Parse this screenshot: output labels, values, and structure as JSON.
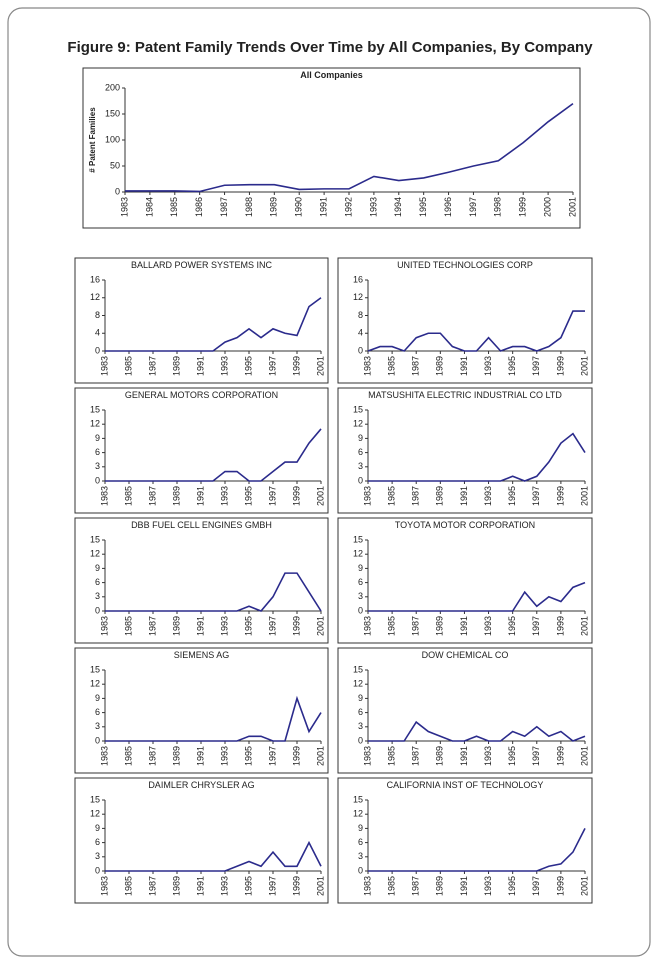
{
  "title": "Figure 9: Patent Family Trends Over Time by All Companies, By Company",
  "chart_data": [
    {
      "type": "line",
      "title": "All Companies",
      "ylabel": "# Patent Families",
      "color": "#2b2b8c",
      "x": [
        1983,
        1984,
        1985,
        1986,
        1987,
        1988,
        1989,
        1990,
        1991,
        1992,
        1993,
        1994,
        1995,
        1996,
        1997,
        1998,
        1999,
        2000,
        2001
      ],
      "values": [
        2,
        2,
        2,
        1,
        13,
        14,
        14,
        5,
        6,
        6,
        30,
        22,
        27,
        38,
        50,
        60,
        95,
        135,
        170
      ],
      "xlim": [
        1983,
        2001
      ],
      "xticks": [
        1983,
        1984,
        1985,
        1986,
        1987,
        1988,
        1989,
        1990,
        1991,
        1992,
        1993,
        1994,
        1995,
        1996,
        1997,
        1998,
        1999,
        2000,
        2001
      ],
      "ylim": [
        0,
        200
      ],
      "yticks": [
        0,
        50,
        100,
        150,
        200
      ]
    },
    {
      "type": "line",
      "title": "BALLARD POWER SYSTEMS INC",
      "color": "#2b2b8c",
      "x": [
        1983,
        1984,
        1985,
        1986,
        1987,
        1988,
        1989,
        1990,
        1991,
        1992,
        1993,
        1994,
        1995,
        1996,
        1997,
        1998,
        1999,
        2000,
        2001
      ],
      "values": [
        0,
        0,
        0,
        0,
        0,
        0,
        0,
        0,
        0,
        0,
        2,
        3,
        5,
        3,
        5,
        4,
        3.5,
        10,
        12
      ],
      "xlim": [
        1983,
        2001
      ],
      "xticks": [
        1983,
        1985,
        1987,
        1989,
        1991,
        1993,
        1995,
        1997,
        1999,
        2001
      ],
      "ylim": [
        0,
        16
      ],
      "yticks": [
        0,
        4,
        8,
        12,
        16
      ]
    },
    {
      "type": "line",
      "title": "UNITED TECHNOLOGIES CORP",
      "color": "#2b2b8c",
      "x": [
        1983,
        1984,
        1985,
        1986,
        1987,
        1988,
        1989,
        1990,
        1991,
        1992,
        1993,
        1994,
        1995,
        1996,
        1997,
        1998,
        1999,
        2000,
        2001
      ],
      "values": [
        0,
        1,
        1,
        0,
        3,
        4,
        4,
        1,
        0,
        0,
        3,
        0,
        1,
        1,
        0,
        1,
        3,
        9,
        9
      ],
      "xlim": [
        1983,
        2001
      ],
      "xticks": [
        1983,
        1985,
        1987,
        1989,
        1991,
        1993,
        1995,
        1997,
        1999,
        2001
      ],
      "ylim": [
        0,
        16
      ],
      "yticks": [
        0,
        4,
        8,
        12,
        16
      ]
    },
    {
      "type": "line",
      "title": "GENERAL MOTORS CORPORATION",
      "color": "#2b2b8c",
      "x": [
        1983,
        1984,
        1985,
        1986,
        1987,
        1988,
        1989,
        1990,
        1991,
        1992,
        1993,
        1994,
        1995,
        1996,
        1997,
        1998,
        1999,
        2000,
        2001
      ],
      "values": [
        0,
        0,
        0,
        0,
        0,
        0,
        0,
        0,
        0,
        0,
        2,
        2,
        0,
        0,
        2,
        4,
        4,
        8,
        11
      ],
      "xlim": [
        1983,
        2001
      ],
      "xticks": [
        1983,
        1985,
        1987,
        1989,
        1991,
        1993,
        1995,
        1997,
        1999,
        2001
      ],
      "ylim": [
        0,
        15
      ],
      "yticks": [
        0,
        3,
        6,
        9,
        12,
        15
      ]
    },
    {
      "type": "line",
      "title": "MATSUSHITA ELECTRIC INDUSTRIAL CO LTD",
      "color": "#2b2b8c",
      "x": [
        1983,
        1984,
        1985,
        1986,
        1987,
        1988,
        1989,
        1990,
        1991,
        1992,
        1993,
        1994,
        1995,
        1996,
        1997,
        1998,
        1999,
        2000,
        2001
      ],
      "values": [
        0,
        0,
        0,
        0,
        0,
        0,
        0,
        0,
        0,
        0,
        0,
        0,
        1,
        0,
        1,
        4,
        8,
        10,
        6
      ],
      "xlim": [
        1983,
        2001
      ],
      "xticks": [
        1983,
        1985,
        1987,
        1989,
        1991,
        1993,
        1995,
        1997,
        1999,
        2001
      ],
      "ylim": [
        0,
        15
      ],
      "yticks": [
        0,
        3,
        6,
        9,
        12,
        15
      ]
    },
    {
      "type": "line",
      "title": "DBB FUEL CELL ENGINES GMBH",
      "color": "#2b2b8c",
      "x": [
        1983,
        1984,
        1985,
        1986,
        1987,
        1988,
        1989,
        1990,
        1991,
        1992,
        1993,
        1994,
        1995,
        1996,
        1997,
        1998,
        1999,
        2000,
        2001
      ],
      "values": [
        0,
        0,
        0,
        0,
        0,
        0,
        0,
        0,
        0,
        0,
        0,
        0,
        1,
        0,
        3,
        8,
        8,
        4,
        0
      ],
      "xlim": [
        1983,
        2001
      ],
      "xticks": [
        1983,
        1985,
        1987,
        1989,
        1991,
        1993,
        1995,
        1997,
        1999,
        2001
      ],
      "ylim": [
        0,
        15
      ],
      "yticks": [
        0,
        3,
        6,
        9,
        12,
        15
      ]
    },
    {
      "type": "line",
      "title": "TOYOTA MOTOR CORPORATION",
      "color": "#2b2b8c",
      "x": [
        1983,
        1984,
        1985,
        1986,
        1987,
        1988,
        1989,
        1990,
        1991,
        1992,
        1993,
        1994,
        1995,
        1996,
        1997,
        1998,
        1999,
        2000,
        2001
      ],
      "values": [
        0,
        0,
        0,
        0,
        0,
        0,
        0,
        0,
        0,
        0,
        0,
        0,
        0,
        4,
        1,
        3,
        2,
        5,
        6
      ],
      "xlim": [
        1983,
        2001
      ],
      "xticks": [
        1983,
        1985,
        1987,
        1989,
        1991,
        1993,
        1995,
        1997,
        1999,
        2001
      ],
      "ylim": [
        0,
        15
      ],
      "yticks": [
        0,
        3,
        6,
        9,
        12,
        15
      ]
    },
    {
      "type": "line",
      "title": "SIEMENS AG",
      "color": "#2b2b8c",
      "x": [
        1983,
        1984,
        1985,
        1986,
        1987,
        1988,
        1989,
        1990,
        1991,
        1992,
        1993,
        1994,
        1995,
        1996,
        1997,
        1998,
        1999,
        2000,
        2001
      ],
      "values": [
        0,
        0,
        0,
        0,
        0,
        0,
        0,
        0,
        0,
        0,
        0,
        0,
        1,
        1,
        0,
        0,
        9,
        2,
        6
      ],
      "xlim": [
        1983,
        2001
      ],
      "xticks": [
        1983,
        1985,
        1987,
        1989,
        1991,
        1993,
        1995,
        1997,
        1999,
        2001
      ],
      "ylim": [
        0,
        15
      ],
      "yticks": [
        0,
        3,
        6,
        9,
        12,
        15
      ]
    },
    {
      "type": "line",
      "title": "DOW CHEMICAL CO",
      "color": "#2b2b8c",
      "x": [
        1983,
        1984,
        1985,
        1986,
        1987,
        1988,
        1989,
        1990,
        1991,
        1992,
        1993,
        1994,
        1995,
        1996,
        1997,
        1998,
        1999,
        2000,
        2001
      ],
      "values": [
        0,
        0,
        0,
        0,
        4,
        2,
        1,
        0,
        0,
        1,
        0,
        0,
        2,
        1,
        3,
        1,
        2,
        0,
        1
      ],
      "xlim": [
        1983,
        2001
      ],
      "xticks": [
        1983,
        1985,
        1987,
        1989,
        1991,
        1993,
        1995,
        1997,
        1999,
        2001
      ],
      "ylim": [
        0,
        15
      ],
      "yticks": [
        0,
        3,
        6,
        9,
        12,
        15
      ]
    },
    {
      "type": "line",
      "title": "DAIMLER CHRYSLER AG",
      "color": "#2b2b8c",
      "x": [
        1983,
        1984,
        1985,
        1986,
        1987,
        1988,
        1989,
        1990,
        1991,
        1992,
        1993,
        1994,
        1995,
        1996,
        1997,
        1998,
        1999,
        2000,
        2001
      ],
      "values": [
        0,
        0,
        0,
        0,
        0,
        0,
        0,
        0,
        0,
        0,
        0,
        1,
        2,
        1,
        4,
        1,
        1,
        6,
        1
      ],
      "xlim": [
        1983,
        2001
      ],
      "xticks": [
        1983,
        1985,
        1987,
        1989,
        1991,
        1993,
        1995,
        1997,
        1999,
        2001
      ],
      "ylim": [
        0,
        15
      ],
      "yticks": [
        0,
        3,
        6,
        9,
        12,
        15
      ]
    },
    {
      "type": "line",
      "title": "CALIFORNIA INST OF TECHNOLOGY",
      "color": "#2b2b8c",
      "x": [
        1983,
        1984,
        1985,
        1986,
        1987,
        1988,
        1989,
        1990,
        1991,
        1992,
        1993,
        1994,
        1995,
        1996,
        1997,
        1998,
        1999,
        2000,
        2001
      ],
      "values": [
        0,
        0,
        0,
        0,
        0,
        0,
        0,
        0,
        0,
        0,
        0,
        0,
        0,
        0,
        0,
        1,
        1.5,
        4,
        9
      ],
      "xlim": [
        1983,
        2001
      ],
      "xticks": [
        1983,
        1985,
        1987,
        1989,
        1991,
        1993,
        1995,
        1997,
        1999,
        2001
      ],
      "ylim": [
        0,
        15
      ],
      "yticks": [
        0,
        3,
        6,
        9,
        12,
        15
      ]
    }
  ]
}
